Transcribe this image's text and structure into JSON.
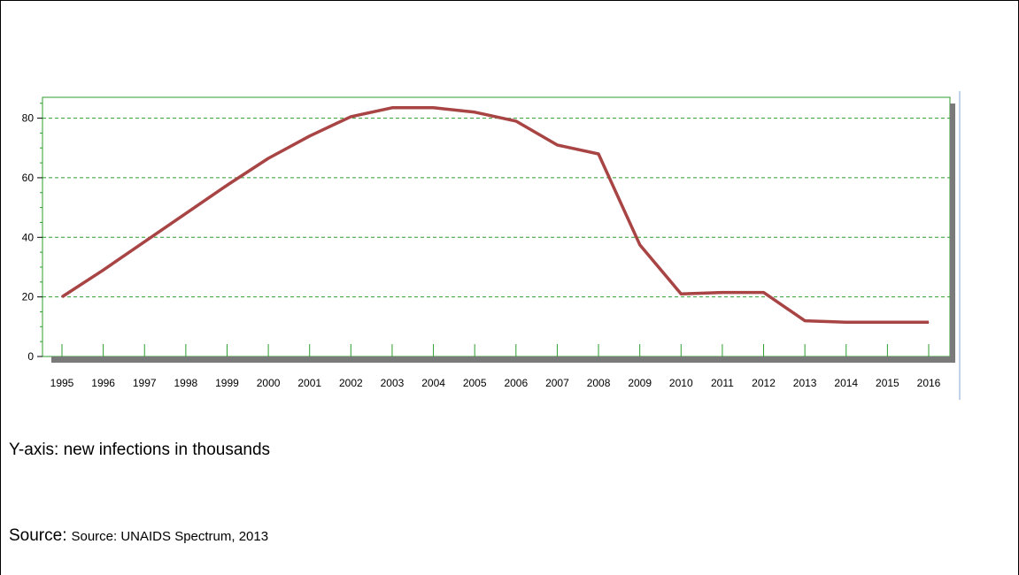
{
  "chart_data": {
    "type": "line",
    "categories": [
      "1995",
      "1996",
      "1997",
      "1998",
      "1999",
      "2000",
      "2001",
      "2002",
      "2003",
      "2004",
      "2005",
      "2006",
      "2007",
      "2008",
      "2009",
      "2010",
      "2011",
      "2012",
      "2013",
      "2014",
      "2015",
      "2016"
    ],
    "series": [
      {
        "values": [
          20,
          29,
          38.5,
          48,
          57.5,
          66.5,
          74,
          80.5,
          83.5,
          83.5,
          82,
          79,
          71,
          68,
          37.5,
          21,
          21.5,
          21.5,
          12,
          11.5,
          11.5,
          11.5
        ]
      }
    ],
    "title": "",
    "xlabel": "",
    "ylabel": "",
    "ylim": [
      0,
      87
    ],
    "yticks": [
      0,
      20,
      40,
      60,
      80
    ],
    "grid": true,
    "line_color": "#A84444",
    "grid_color": "#2E9E2E"
  },
  "caption": {
    "yaxis_text": "Y-axis: new infections in thousands",
    "source_label": "Source:",
    "source_text": "Source: UNAIDS Spectrum, 2013"
  }
}
